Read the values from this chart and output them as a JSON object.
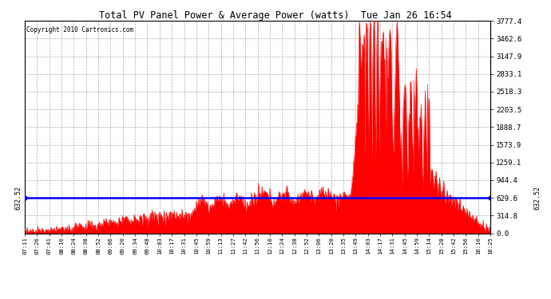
{
  "title": "Total PV Panel Power & Average Power (watts)  Tue Jan 26 16:54",
  "copyright": "Copyright 2010 Cartronics.com",
  "yticks": [
    0.0,
    314.8,
    629.6,
    944.4,
    1259.1,
    1573.9,
    1888.7,
    2203.5,
    2518.3,
    2833.1,
    3147.9,
    3462.6,
    3777.4
  ],
  "ymax": 3777.4,
  "average_line": 632.52,
  "avg_label": "632.52",
  "fill_color": "#FF0000",
  "line_color": "#FF0000",
  "avg_line_color": "#0000FF",
  "bg_color": "#FFFFFF",
  "plot_bg_color": "#FFFFFF",
  "grid_color": "#999999",
  "xtick_labels": [
    "07:11",
    "07:26",
    "07:41",
    "08:10",
    "08:24",
    "08:38",
    "08:52",
    "09:06",
    "09:20",
    "09:34",
    "09:48",
    "10:03",
    "10:17",
    "10:31",
    "10:45",
    "10:59",
    "11:13",
    "11:27",
    "11:42",
    "11:56",
    "12:10",
    "12:24",
    "12:38",
    "12:52",
    "13:06",
    "13:20",
    "13:35",
    "13:49",
    "14:03",
    "14:17",
    "14:31",
    "14:45",
    "14:59",
    "15:14",
    "15:28",
    "15:42",
    "15:56",
    "16:10",
    "16:25"
  ]
}
